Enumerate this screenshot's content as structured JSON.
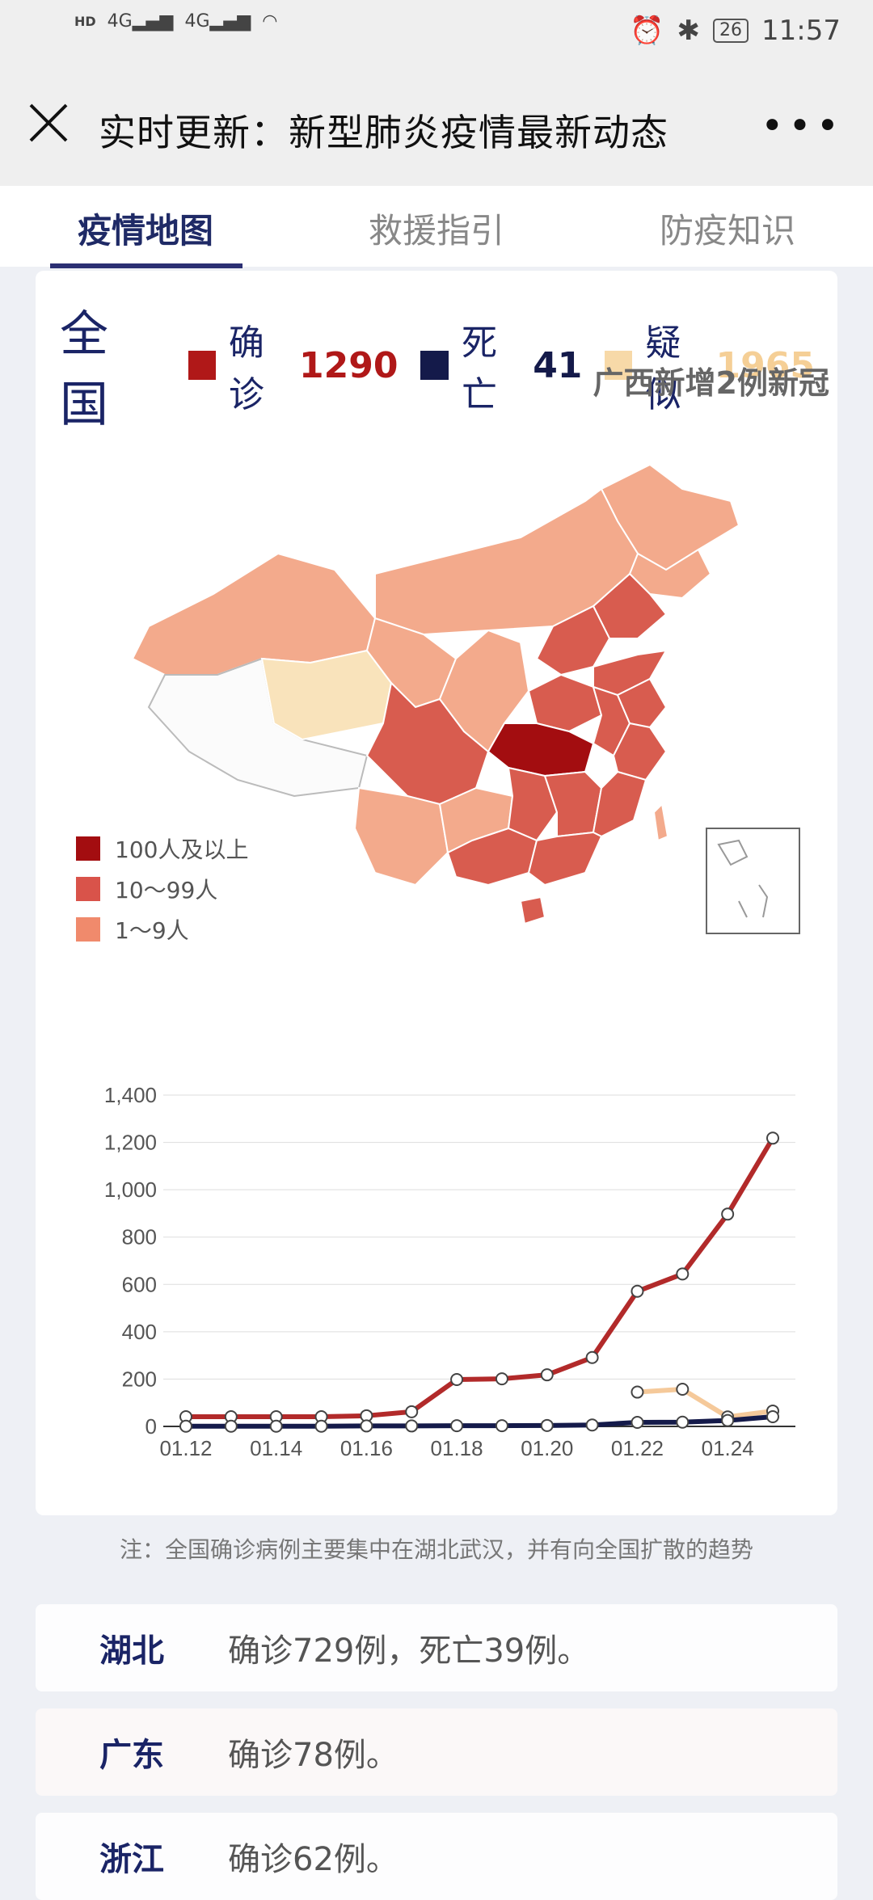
{
  "status_bar": {
    "left_labels": [
      "HD",
      "4G",
      "4G"
    ],
    "battery": "26",
    "time": "11:57"
  },
  "header": {
    "title": "实时更新：新型肺炎疫情最新动态"
  },
  "tabs": [
    {
      "label": "疫情地图",
      "active": true
    },
    {
      "label": "救援指引",
      "active": false
    },
    {
      "label": "防疫知识",
      "active": false
    }
  ],
  "summary": {
    "region": "全国",
    "confirmed_label": "确诊",
    "confirmed_value": "1290",
    "death_label": "死亡",
    "death_value": "41",
    "suspected_label": "疑似",
    "suspected_value": "1965",
    "ticker": "广西新增2例新冠",
    "colors": {
      "confirmed": "#b01818",
      "death": "#141a4a",
      "suspected": "#f7d9a8"
    }
  },
  "map_legend": [
    {
      "label": "100人及以上",
      "color": "#a30d10"
    },
    {
      "label": "10～99人",
      "color": "#d9534a"
    },
    {
      "label": "1～9人",
      "color": "#f08a6c"
    }
  ],
  "chart_data": {
    "type": "line",
    "x": [
      "01.12",
      "01.13",
      "01.14",
      "01.15",
      "01.16",
      "01.17",
      "01.18",
      "01.19",
      "01.20",
      "01.21",
      "01.22",
      "01.23",
      "01.24",
      "01.25"
    ],
    "xtick_labels": [
      "01.12",
      "01.14",
      "01.16",
      "01.18",
      "01.20",
      "01.22",
      "01.24"
    ],
    "ylim": [
      0,
      1400
    ],
    "yticks": [
      "0",
      "200",
      "400",
      "600",
      "800",
      "1,000",
      "1,200",
      "1,400"
    ],
    "grid": true,
    "series": [
      {
        "color": "#b22a2a",
        "values": [
          41,
          41,
          41,
          41,
          45,
          62,
          198,
          201,
          218,
          291,
          571,
          644,
          897,
          1218
        ]
      },
      {
        "color": "#f5c99a",
        "values": [
          null,
          null,
          null,
          null,
          null,
          null,
          null,
          null,
          null,
          null,
          145,
          157,
          40,
          65
        ]
      },
      {
        "color": "#141a4a",
        "values": [
          1,
          1,
          1,
          1,
          2,
          2,
          3,
          3,
          4,
          6,
          17,
          18,
          25,
          41
        ]
      }
    ]
  },
  "note": "注：全国确诊病例主要集中在湖北武汉，并有向全国扩散的趋势",
  "provinces": [
    {
      "name": "湖北",
      "desc": "确诊729例，死亡39例。"
    },
    {
      "name": "广东",
      "desc": "确诊78例。"
    },
    {
      "name": "浙江",
      "desc": "确诊62例。"
    }
  ]
}
